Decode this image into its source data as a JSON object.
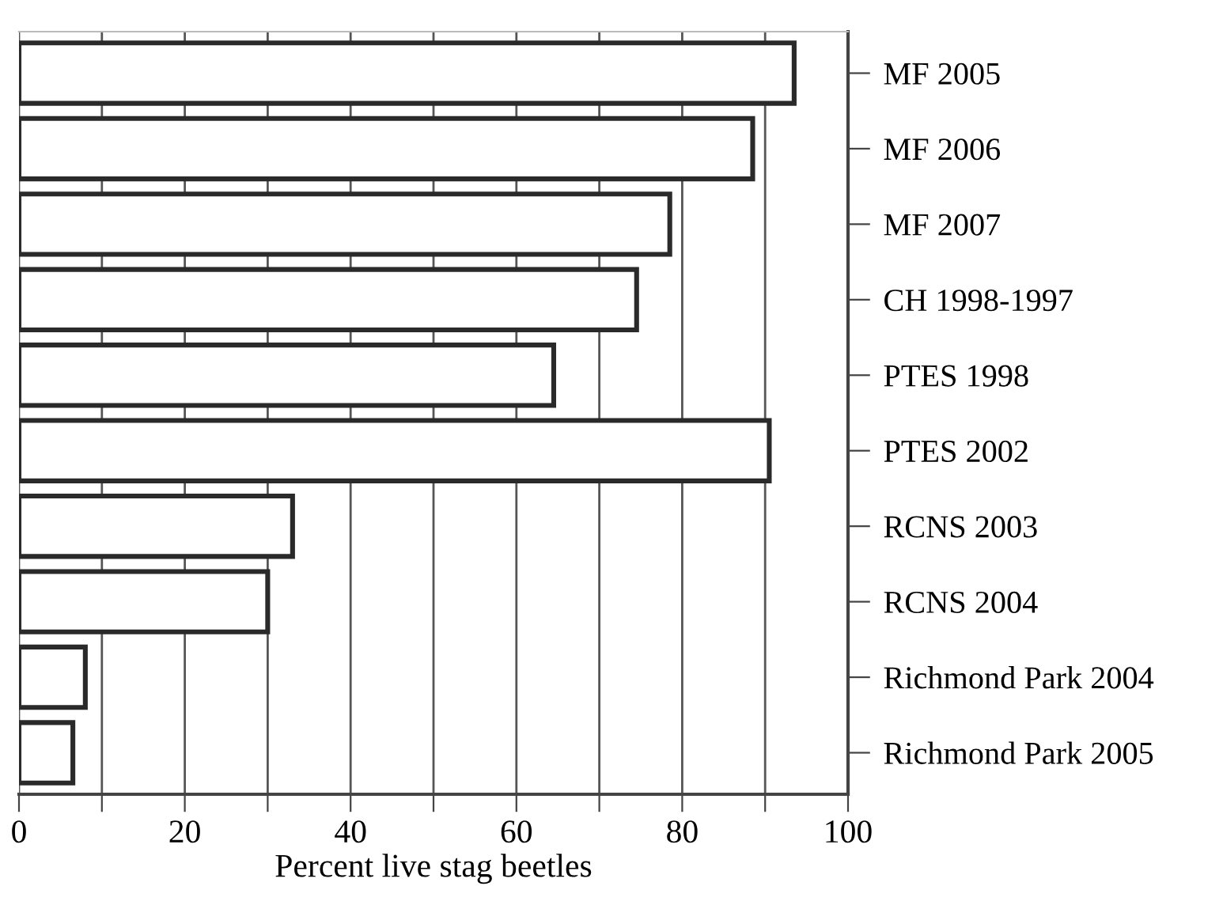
{
  "chart_data": {
    "type": "bar",
    "orientation": "horizontal",
    "xlabel": "Percent live stag beetles",
    "categories": [
      "MF 2005",
      "MF 2006",
      "MF 2007",
      "CH 1998-1997",
      "PTES 1998",
      "PTES 2002",
      "RCNS 2003",
      "RCNS 2004",
      "Richmond Park 2004",
      "Richmond Park 2005"
    ],
    "values": [
      93.5,
      88.5,
      78.5,
      74.5,
      64.5,
      90.5,
      33,
      30,
      8,
      6.5
    ],
    "color": "#ffffff",
    "xlim": [
      0,
      100
    ],
    "xticks": [
      0,
      {
        "value": 10,
        "label": null
      },
      20,
      {
        "value": 30,
        "label": null
      },
      40,
      {
        "value": 50,
        "label": null
      },
      60,
      {
        "value": 70,
        "label": null
      },
      80,
      {
        "value": 90,
        "label": null
      },
      100
    ],
    "grid": "x"
  }
}
